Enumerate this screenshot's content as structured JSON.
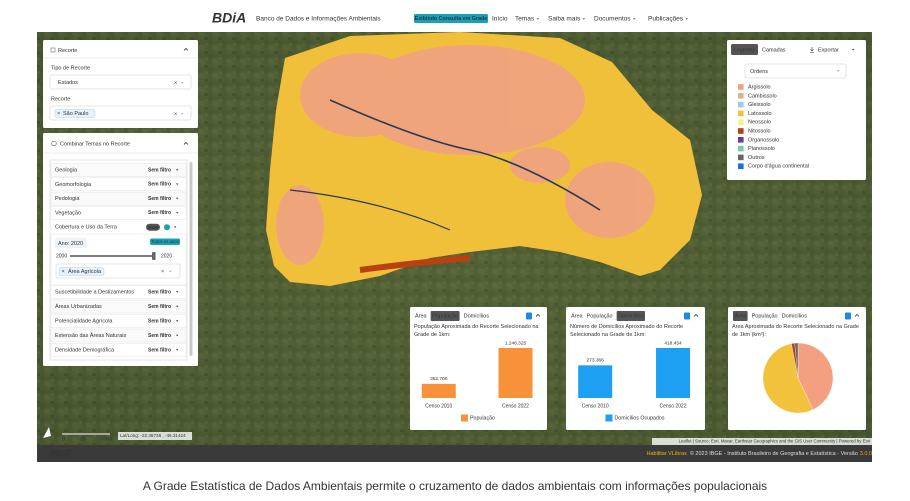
{
  "header": {
    "logo": "BDiA",
    "subtitle": "Banco de Dados e Informações Ambientais",
    "badge": "Exibindo Consulta em Grade",
    "menu": [
      "Início",
      "Temas",
      "Saiba mais",
      "Documentos",
      "Publicações"
    ]
  },
  "recorte_panel": {
    "title": "Recorte",
    "type_label": "Tipo de Recorte",
    "type_value": "Estados",
    "recorte_label": "Recorte",
    "recorte_tag": "São Paulo"
  },
  "temas_panel": {
    "title": "Combinar Temas no Recorte",
    "rows": [
      {
        "label": "Geologia",
        "filter": "Sem filtro"
      },
      {
        "label": "Geomorfologia",
        "filter": "Sem filtro"
      },
      {
        "label": "Pedologia",
        "filter": "Sem filtro"
      },
      {
        "label": "Vegetação",
        "filter": "Sem filtro"
      },
      {
        "label": "Cobertura e Uso da Terra",
        "filter": "2020"
      },
      {
        "label": "Suscetibilidade a Deslizamentos",
        "filter": "Sem filtro"
      },
      {
        "label": "Áreas Urbanizadas",
        "filter": "Sem filtro"
      },
      {
        "label": "Potencialidade Agrícola",
        "filter": "Sem filtro"
      },
      {
        "label": "Extensão das Áreas Naturais",
        "filter": "Sem filtro"
      },
      {
        "label": "Densidade Demográfica",
        "filter": "Sem filtro"
      }
    ],
    "expanded": {
      "year_label": "Ano: 2020",
      "all_years": "Todos os anos",
      "slider_min": 2000,
      "slider_max": 2020,
      "tag": "Área Agrícola"
    }
  },
  "legend_panel": {
    "tabs": [
      "Legenda",
      "Camadas"
    ],
    "export": "Exportar",
    "select": "Ordens",
    "items": [
      {
        "label": "Argissolo",
        "color": "#f3a081"
      },
      {
        "label": "Cambissolo",
        "color": "#d9b48a"
      },
      {
        "label": "Gleissolo",
        "color": "#9fcbe0"
      },
      {
        "label": "Latossolo",
        "color": "#f3c23d"
      },
      {
        "label": "Neossolo",
        "color": "#f7f28a"
      },
      {
        "label": "Nitossolo",
        "color": "#b9400f"
      },
      {
        "label": "Organossolo",
        "color": "#6a3d8f"
      },
      {
        "label": "Planossolo",
        "color": "#7fc7b3"
      },
      {
        "label": "Outros",
        "color": "#666666"
      },
      {
        "label": "Corpo d'água continental",
        "color": "#1f6fe0"
      }
    ]
  },
  "chart_data": [
    {
      "type": "bar",
      "tabs": [
        "Área",
        "População",
        "Domicílios"
      ],
      "active_tab": 1,
      "title": "População Aproximada do Recorte Selecionado na Grade de 1km:",
      "categories": [
        "Censo 2010",
        "Censo 2022"
      ],
      "series": [
        {
          "name": "População",
          "color": "#f7923a",
          "values": [
            352700,
            1246325
          ],
          "value_labels": [
            "352.700",
            "1.246.325"
          ]
        }
      ]
    },
    {
      "type": "bar",
      "tabs": [
        "Área",
        "População",
        "Domicílios"
      ],
      "active_tab": 2,
      "title": "Número de Domicílios Aproximado do Recorte Selecionado na Grade de 1km:",
      "categories": [
        "Censo 2010",
        "Censo 2022"
      ],
      "series": [
        {
          "name": "Domicílios Ocupados",
          "color": "#1ea0f2",
          "values": [
            273366,
            418454
          ],
          "value_labels": [
            "273.366",
            "418.454"
          ]
        }
      ]
    },
    {
      "type": "pie",
      "tabs": [
        "Área",
        "População",
        "Domicílios"
      ],
      "active_tab": 0,
      "title": "Área Aproximada do Recorte Selecionado na Grade de 1km (km²):",
      "values": [
        43,
        54,
        1.5,
        1.5
      ],
      "colors": [
        "#f3a081",
        "#f3c23d",
        "#b9400f",
        "#666666"
      ]
    }
  ],
  "map": {
    "scale": [
      "0",
      "25",
      "50km"
    ],
    "coords": "Lat/Long: -22.36736 , -46.31424",
    "attribution": "Leaflet | Source: Esri, Maxar, Earthstar Geographics and the GIS User Community | Powered by Esri"
  },
  "footer": {
    "logo": "IBGE",
    "vlibras": "Habilitar VLibras",
    "copyright": "© 2023 IBGE - Instituto Brasileiro de Geografia e Estatística - Versão",
    "version": "3.0.0"
  },
  "caption": "A Grade Estatística de Dados Ambientais permite o cruzamento de dados ambientais com informações populacionais"
}
